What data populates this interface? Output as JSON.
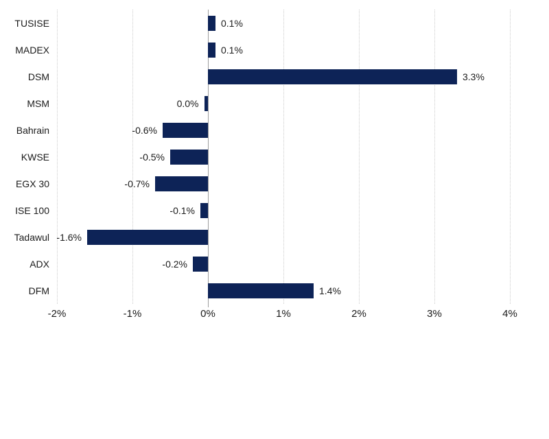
{
  "chart_data": {
    "type": "bar",
    "orientation": "horizontal",
    "title": "",
    "categories": [
      "TUSISE",
      "MADEX",
      "DSM",
      "MSM",
      "Bahrain",
      "KWSE",
      "EGX 30",
      "ISE 100",
      "Tadawul",
      "ADX",
      "DFM"
    ],
    "values": [
      0.1,
      0.1,
      3.3,
      0.0,
      -0.6,
      -0.5,
      -0.7,
      -0.1,
      -1.6,
      -0.2,
      1.4
    ],
    "value_labels": [
      "0.1%",
      "0.1%",
      "3.3%",
      "0.0%",
      "-0.6%",
      "-0.5%",
      "-0.7%",
      "-0.1%",
      "-1.6%",
      "-0.2%",
      "1.4%"
    ],
    "bar_render_values": [
      0.1,
      0.1,
      3.3,
      -0.05,
      -0.6,
      -0.5,
      -0.7,
      -0.1,
      -1.6,
      -0.2,
      1.4
    ],
    "xlim": [
      -2,
      4
    ],
    "x_ticks": [
      {
        "label": "-2%",
        "value": -2
      },
      {
        "label": "-1%",
        "value": -1
      },
      {
        "label": "0%",
        "value": 0
      },
      {
        "label": "1%",
        "value": 1
      },
      {
        "label": "2%",
        "value": 2
      },
      {
        "label": "3%",
        "value": 3
      },
      {
        "label": "4%",
        "value": 4
      }
    ],
    "grid": "vertical dotted gridlines at each 1% tick, solid axis line at 0%",
    "legend": "none",
    "colors": {
      "bar": "#0d2357",
      "zero_axis_line": "#9e9e9e",
      "gridline": "#cbcbcb",
      "text": "#1a1a1a",
      "background": "#ffffff"
    }
  }
}
